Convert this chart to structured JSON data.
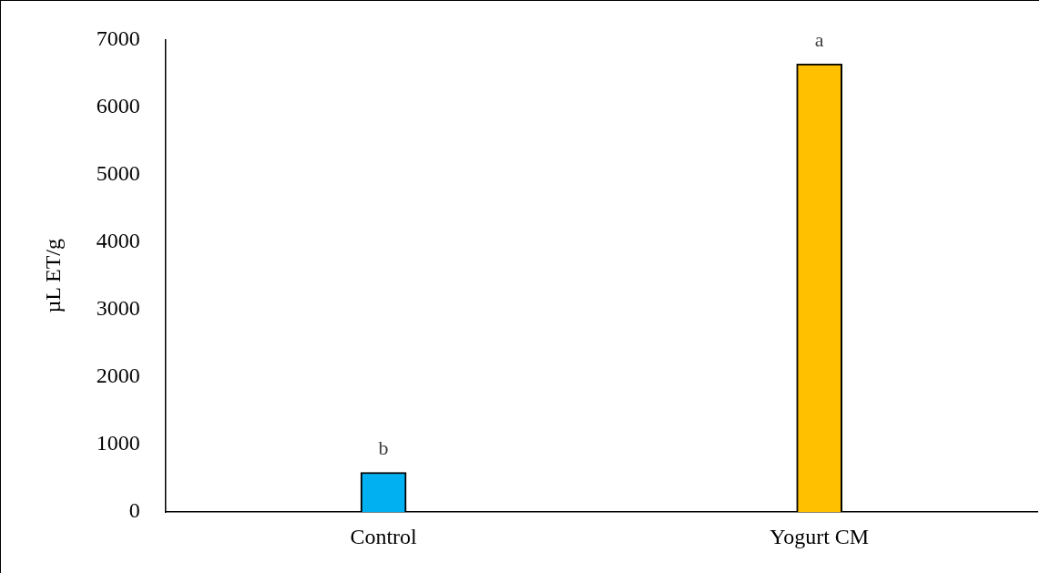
{
  "chart_data": {
    "type": "bar",
    "ylabel": "µL ET/g",
    "categories": [
      "Control",
      "Yogurt CM"
    ],
    "values": [
      590,
      6640
    ],
    "colors": [
      "#00b0f0",
      "#ffc000"
    ],
    "ylim": [
      0,
      7000
    ],
    "yticks": [
      0,
      1000,
      2000,
      3000,
      4000,
      5000,
      6000,
      7000
    ],
    "grid": false,
    "legend": false,
    "annotations": [
      {
        "text": "b",
        "x": "Control",
        "y": 590
      },
      {
        "text": "a",
        "x": "Yogurt CM",
        "y": 6640
      }
    ]
  }
}
